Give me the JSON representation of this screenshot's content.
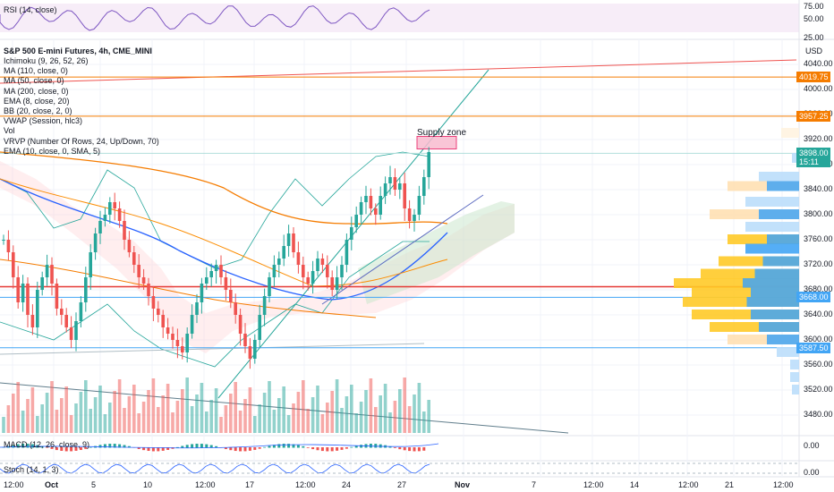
{
  "panes": {
    "rsi": {
      "label": "RSI (14, close)",
      "ticks": [
        "75.00",
        "50.00",
        "25.00"
      ]
    },
    "macd": {
      "label": "MACD (12, 26, close, 9)",
      "tick": "0.00"
    },
    "stoch": {
      "label": "Stoch (14, 1, 3)",
      "tick": "0.00"
    }
  },
  "main": {
    "symbol": "S&P 500 E-mini Futures, 4h, CME_MINI",
    "currency": "USD",
    "indicators": [
      "Ichimoku (9, 26, 52, 26)",
      "MA (110, close, 0)",
      "MA (50, close, 0)",
      "MA (200, close, 0)",
      "EMA (8, close, 20)",
      "BB (20, close, 2, 0)",
      "VWAP (Session, hlc3)",
      "Vol",
      "VRVP (Number Of Rows, 24, Up/Down, 70)",
      "EMA (10, close, 0, SMA, 5)"
    ],
    "annotation": "Supply zone"
  },
  "price_axis": {
    "ticks": [
      "4040.00",
      "4000.00",
      "3960.00",
      "3920.00",
      "3880.00",
      "3840.00",
      "3800.00",
      "3760.00",
      "3720.00",
      "3680.00",
      "3640.00",
      "3600.00",
      "3560.00",
      "3520.00",
      "3480.00"
    ],
    "tags": [
      {
        "value": "4019.75",
        "color": "#f57c00"
      },
      {
        "value": "3957.25",
        "color": "#f57c00"
      },
      {
        "value": "3898.00",
        "value2": "15:11",
        "color": "#26a69a"
      },
      {
        "value": "3668.00",
        "color": "#42a5f5"
      },
      {
        "value": "3587.50",
        "color": "#42a5f5"
      }
    ]
  },
  "time_axis": [
    "12:00",
    "Oct",
    "5",
    "10",
    "12:00",
    "17",
    "12:00",
    "24",
    "27",
    "Nov",
    "7",
    "12:00",
    "14",
    "12:00",
    "21",
    "12:00"
  ],
  "chart_data": {
    "type": "candlestick",
    "title": "S&P 500 E-mini Futures, 4h, CME_MINI",
    "ylim": [
      3460,
      4060
    ],
    "y_unit": "USD",
    "x_axis_labels": [
      "12:00",
      "Oct",
      "5",
      "10",
      "12:00",
      "17",
      "12:00",
      "24",
      "27",
      "Nov",
      "7",
      "12:00",
      "14",
      "12:00",
      "21",
      "12:00"
    ],
    "approx_closes": [
      3760,
      3740,
      3700,
      3660,
      3690,
      3640,
      3620,
      3680,
      3700,
      3720,
      3690,
      3650,
      3640,
      3620,
      3600,
      3630,
      3660,
      3700,
      3740,
      3770,
      3790,
      3800,
      3820,
      3810,
      3790,
      3760,
      3740,
      3720,
      3700,
      3690,
      3670,
      3650,
      3640,
      3620,
      3610,
      3600,
      3590,
      3580,
      3610,
      3640,
      3660,
      3690,
      3700,
      3710,
      3720,
      3700,
      3680,
      3660,
      3640,
      3610,
      3590,
      3570,
      3600,
      3640,
      3670,
      3700,
      3720,
      3730,
      3750,
      3770,
      3740,
      3720,
      3700,
      3690,
      3710,
      3730,
      3720,
      3700,
      3680,
      3700,
      3720,
      3760,
      3780,
      3800,
      3820,
      3830,
      3810,
      3800,
      3830,
      3850,
      3860,
      3840,
      3850,
      3810,
      3790,
      3800,
      3830,
      3860,
      3900
    ],
    "horizontal_levels": [
      4019.75,
      3957.25,
      3898.0,
      3668.0,
      3587.5
    ],
    "annotations": [
      {
        "text": "Supply zone",
        "y_range": [
          3905,
          3925
        ]
      }
    ],
    "panes": [
      "RSI (14, close)",
      "MACD (12, 26, close, 9)",
      "Stoch (14, 1, 3)"
    ],
    "colors": {
      "up": "#26a69a",
      "down": "#ef5350",
      "orange": "#f57c00",
      "blue": "#42a5f5",
      "red": "#e53935"
    }
  }
}
